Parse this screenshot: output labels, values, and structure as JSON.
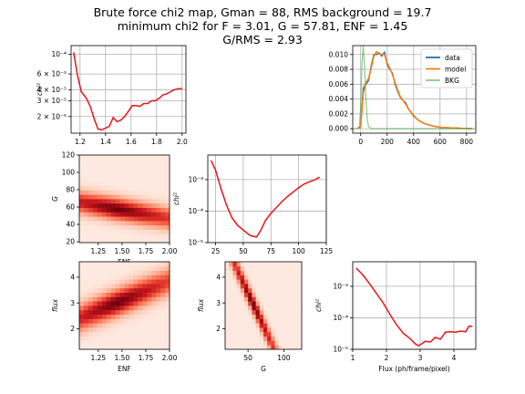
{
  "title": {
    "line1": "Brute force chi2 map, Gman = 88, RMS background = 19.7",
    "line2": "minimum chi2 for F = 3.01, G = 57.81, ENF = 1.45",
    "line3": "G/RMS = 2.93"
  },
  "colors": {
    "red": "#e8141a",
    "data": "#1f77b4",
    "model": "#ff7f0e",
    "bkg": "#2ca02c"
  },
  "chart_data": [
    {
      "id": "chi2_vs_enf",
      "type": "line",
      "yscale": "log",
      "xlabel": "",
      "ylabel": "chi²",
      "xlim": [
        1.13,
        2.03
      ],
      "ylim": [
        1.3e-05,
        0.000125
      ],
      "xticks": [
        "1.2",
        "1.4",
        "1.6",
        "1.8",
        "2.0"
      ],
      "xtick_values": [
        1.2,
        1.4,
        1.6,
        1.8,
        2.0
      ],
      "yticks": [
        "10⁻⁴",
        "6 × 10⁻⁵",
        "4 × 10⁻⁵",
        "3 × 10⁻⁵",
        "2 × 10⁻⁵"
      ],
      "ytick_values": [
        0.0001,
        6e-05,
        4e-05,
        3e-05,
        2e-05
      ],
      "x": [
        1.15,
        1.18,
        1.21,
        1.25,
        1.28,
        1.31,
        1.34,
        1.37,
        1.4,
        1.43,
        1.46,
        1.49,
        1.52,
        1.55,
        1.58,
        1.61,
        1.64,
        1.67,
        1.7,
        1.73,
        1.76,
        1.79,
        1.82,
        1.85,
        1.88,
        1.91,
        1.94,
        1.97,
        2.0
      ],
      "y": [
        0.000105,
        5.8e-05,
        3.8e-05,
        3.2e-05,
        2.6e-05,
        1.9e-05,
        1.45e-05,
        1.42e-05,
        1.48e-05,
        1.55e-05,
        1.95e-05,
        1.75e-05,
        1.82e-05,
        2e-05,
        2.3e-05,
        2.65e-05,
        2.65e-05,
        2.6e-05,
        2.8e-05,
        2.8e-05,
        3e-05,
        3e-05,
        3.2e-05,
        3.5e-05,
        3.6e-05,
        3.8e-05,
        4e-05,
        4.1e-05,
        4.1e-05
      ]
    },
    {
      "id": "histogram",
      "type": "line",
      "xlim": [
        -60,
        870
      ],
      "ylim": [
        -0.0006,
        0.0112
      ],
      "xticks": [
        "0",
        "200",
        "400",
        "600",
        "800"
      ],
      "xtick_values": [
        0,
        200,
        400,
        600,
        800
      ],
      "yticks": [
        "0.000",
        "0.002",
        "0.004",
        "0.006",
        "0.008",
        "0.010"
      ],
      "ytick_values": [
        0,
        0.002,
        0.004,
        0.006,
        0.008,
        0.01
      ],
      "legend": [
        "data",
        "model",
        "BKG"
      ],
      "legend_position": "top-right",
      "series": [
        {
          "name": "data",
          "color": "#1f77b4",
          "x": [
            -20,
            0,
            20,
            40,
            60,
            80,
            100,
            120,
            140,
            160,
            180,
            200,
            220,
            240,
            260,
            280,
            300,
            320,
            340,
            360,
            380,
            400,
            420,
            440,
            460,
            480,
            500,
            520,
            540,
            560,
            600,
            640,
            680,
            720,
            760,
            800,
            840
          ],
          "y": [
            0.0,
            0.0003,
            0.0055,
            0.006,
            0.0065,
            0.0085,
            0.01,
            0.01,
            0.0102,
            0.0098,
            0.0103,
            0.0087,
            0.008,
            0.0075,
            0.006,
            0.005,
            0.0042,
            0.0038,
            0.0035,
            0.0027,
            0.0022,
            0.0017,
            0.0014,
            0.0011,
            0.0009,
            0.0007,
            0.0006,
            0.0005,
            0.0004,
            0.0003,
            0.0002,
            0.00015,
            0.0001,
            0.0001,
            5e-05,
            5e-05,
            0.0
          ]
        },
        {
          "name": "model",
          "color": "#ff7f0e",
          "x": [
            -20,
            0,
            20,
            40,
            60,
            80,
            100,
            120,
            140,
            160,
            180,
            200,
            220,
            240,
            260,
            280,
            300,
            320,
            340,
            360,
            380,
            400,
            420,
            440,
            460,
            480,
            500,
            520,
            540,
            560,
            600,
            640,
            680,
            720,
            760,
            800,
            840
          ],
          "y": [
            0.0,
            0.0002,
            0.0048,
            0.0062,
            0.0068,
            0.0082,
            0.0098,
            0.0104,
            0.0101,
            0.01,
            0.01,
            0.0089,
            0.0082,
            0.0073,
            0.0062,
            0.0052,
            0.0043,
            0.0038,
            0.0033,
            0.0027,
            0.0022,
            0.0018,
            0.0014,
            0.0011,
            0.0009,
            0.0007,
            0.0006,
            0.0005,
            0.0004,
            0.0003,
            0.0002,
            0.00015,
            0.0001,
            0.0001,
            5e-05,
            5e-05,
            0.0
          ]
        },
        {
          "name": "BKG",
          "color": "#2ca02c",
          "x": [
            -60,
            -30,
            -10,
            0,
            10,
            20,
            30,
            40,
            50,
            60,
            80,
            120,
            200,
            400,
            860
          ],
          "y": [
            0.0,
            0.0,
            0.0003,
            0.003,
            0.009,
            0.0112,
            0.008,
            0.004,
            0.0012,
            0.0003,
            0.0,
            0.0,
            0.0,
            0.0,
            0.0
          ]
        }
      ]
    },
    {
      "id": "map_enf_g",
      "type": "heatmap",
      "xlabel": "ENF",
      "ylabel": "G",
      "xlim": [
        1.05,
        2.0
      ],
      "ylim": [
        19,
        120
      ],
      "xticks": [
        "1.25",
        "1.50",
        "1.75",
        "2.00"
      ],
      "xtick_values": [
        1.25,
        1.5,
        1.75,
        2.0
      ],
      "yticks": [
        "20",
        "40",
        "60",
        "80",
        "100",
        "120"
      ],
      "ytick_values": [
        20,
        40,
        60,
        80,
        100,
        120
      ],
      "ridge": {
        "x0": 1.05,
        "y0": 66,
        "slope": -20,
        "width": 12,
        "cx": 1.45,
        "cy": 57.8
      }
    },
    {
      "id": "chi2_vs_g",
      "type": "line",
      "yscale": "log",
      "ylabel": "chi²",
      "xlim": [
        18,
        125
      ],
      "ylim": [
        1e-05,
        0.006
      ],
      "xticks": [
        "25",
        "50",
        "75",
        "100",
        "125"
      ],
      "xtick_values": [
        25,
        50,
        75,
        100,
        125
      ],
      "yticks": [
        "10⁻³",
        "10⁻⁴",
        "10⁻⁵"
      ],
      "ytick_values": [
        0.001,
        0.0001,
        1e-05
      ],
      "x": [
        21,
        25,
        30,
        35,
        40,
        45,
        50,
        55,
        58,
        62,
        66,
        70,
        75,
        80,
        85,
        90,
        95,
        100,
        105,
        110,
        115,
        119
      ],
      "y": [
        0.004,
        0.002,
        0.0005,
        0.00015,
        6e-05,
        3.5e-05,
        2.5e-05,
        1.8e-05,
        1.6e-05,
        1.5e-05,
        2.5e-05,
        5e-05,
        8.5e-05,
        0.00013,
        0.0002,
        0.00029,
        0.0004,
        0.00055,
        0.00072,
        0.00086,
        0.001,
        0.0012
      ]
    },
    {
      "id": "map_enf_flux",
      "type": "heatmap",
      "xlabel": "ENF",
      "ylabel": "flux",
      "xlim": [
        1.05,
        2.0
      ],
      "ylim": [
        1.2,
        4.6
      ],
      "xticks": [
        "1.25",
        "1.50",
        "1.75",
        "2.00"
      ],
      "xtick_values": [
        1.25,
        1.5,
        1.75,
        2.0
      ],
      "yticks": [
        "2",
        "3",
        "4"
      ],
      "ytick_values": [
        2,
        3,
        4
      ],
      "ridge": {
        "x0": 1.05,
        "y0": 2.4,
        "slope": 1.55,
        "width": 0.5,
        "cx": 1.45,
        "cy": 3.01
      }
    },
    {
      "id": "map_g_flux",
      "type": "heatmap",
      "xlabel": "G",
      "ylabel": "flux",
      "xlim": [
        18,
        125
      ],
      "ylim": [
        1.2,
        4.6
      ],
      "xticks": [
        "50",
        "100"
      ],
      "xtick_values": [
        50,
        100
      ],
      "yticks": [
        "2",
        "3",
        "4"
      ],
      "ytick_values": [
        2,
        3,
        4
      ],
      "ridge": {
        "x0": 30,
        "y0": 4.6,
        "slope": -0.06,
        "width": 0.35,
        "cx": 57.8,
        "cy": 3.01
      }
    },
    {
      "id": "chi2_vs_flux",
      "type": "line",
      "yscale": "log",
      "xlabel": "Flux (ph/frame/pixel)",
      "ylabel": "chi²",
      "xlim": [
        1.0,
        4.65
      ],
      "ylim": [
        1e-05,
        0.006
      ],
      "xticks": [
        "1",
        "2",
        "3",
        "4"
      ],
      "xtick_values": [
        1,
        2,
        3,
        4
      ],
      "yticks": [
        "10⁻³",
        "10⁻⁴",
        "10⁻⁵"
      ],
      "ytick_values": [
        0.001,
        0.0001,
        1e-05
      ],
      "x": [
        1.1,
        1.3,
        1.5,
        1.7,
        1.9,
        2.1,
        2.3,
        2.5,
        2.7,
        2.85,
        2.95,
        3.05,
        3.15,
        3.3,
        3.45,
        3.6,
        3.75,
        3.9,
        4.05,
        4.2,
        4.35,
        4.45,
        4.55
      ],
      "y": [
        0.0038,
        0.0023,
        0.0012,
        0.0006,
        0.0003,
        0.00013,
        6e-05,
        3.2e-05,
        2.2e-05,
        1.5e-05,
        1.3e-05,
        1.5e-05,
        1.8e-05,
        1.7e-05,
        2.4e-05,
        2.1e-05,
        3.5e-05,
        3.6e-05,
        3.5e-05,
        3.8e-05,
        3.6e-05,
        5.5e-05,
        5.3e-05
      ]
    }
  ]
}
